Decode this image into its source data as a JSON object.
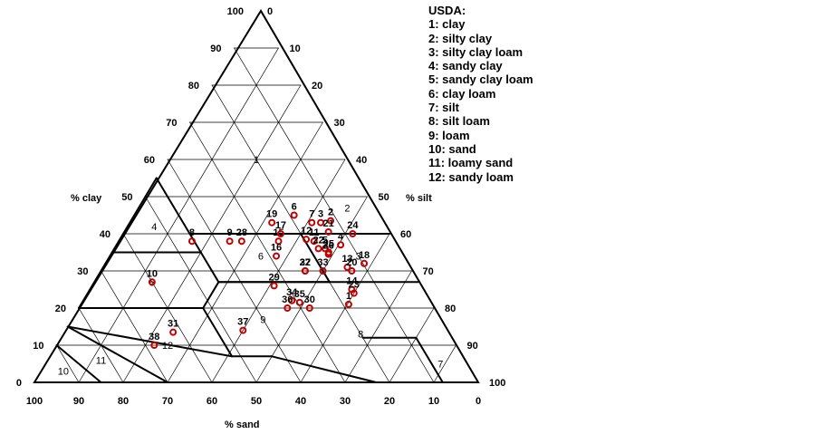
{
  "chart_data": {
    "type": "ternary-scatter",
    "title": "",
    "axes": {
      "clay": {
        "label": "% clay",
        "ticks": [
          "0",
          "10",
          "20",
          "30",
          "40",
          "50",
          "60",
          "70",
          "80",
          "90",
          "100"
        ]
      },
      "silt": {
        "label": "% silt",
        "ticks": [
          "0",
          "10",
          "20",
          "30",
          "40",
          "50",
          "60",
          "70",
          "80",
          "90",
          "100"
        ]
      },
      "sand": {
        "label": "% sand",
        "ticks": [
          "100",
          "90",
          "80",
          "70",
          "60",
          "50",
          "40",
          "30",
          "20",
          "10",
          "0"
        ]
      }
    },
    "grid": true,
    "legend": {
      "position": "top-right",
      "title": "USDA:",
      "entries": [
        "1: clay",
        "2: silty clay",
        "3: silty clay loam",
        "4: sandy clay",
        "5: sandy clay loam",
        "6: clay loam",
        "7: silt",
        "8: silt loam",
        "9: loam",
        "10: sand",
        "11: loamy sand",
        "12: sandy loam"
      ]
    },
    "region_labels": [
      {
        "text": "1",
        "sand": 20,
        "clay": 60
      },
      {
        "text": "2",
        "sand": 6,
        "clay": 47
      },
      {
        "text": "3",
        "sand": 10,
        "clay": 34
      },
      {
        "text": "4",
        "sand": 52,
        "clay": 42
      },
      {
        "text": "5",
        "sand": 60,
        "clay": 27
      },
      {
        "text": "6",
        "sand": 32,
        "clay": 34
      },
      {
        "text": "7",
        "sand": 6,
        "clay": 5
      },
      {
        "text": "8",
        "sand": 20,
        "clay": 13
      },
      {
        "text": "9",
        "sand": 40,
        "clay": 17
      },
      {
        "text": "10",
        "sand": 92,
        "clay": 3
      },
      {
        "text": "11",
        "sand": 82,
        "clay": 6
      },
      {
        "text": "12",
        "sand": 65,
        "clay": 10
      }
    ],
    "points": [
      {
        "label": "1",
        "sand": 18.7,
        "clay": 21.0
      },
      {
        "label": "2",
        "sand": 11.5,
        "clay": 43.5
      },
      {
        "label": "3",
        "sand": 14.0,
        "clay": 43.0
      },
      {
        "label": "4",
        "sand": 12.5,
        "clay": 37.0
      },
      {
        "label": "5",
        "sand": 16.5,
        "clay": 36.0
      },
      {
        "label": "6",
        "sand": 19.0,
        "clay": 45.0
      },
      {
        "label": "7",
        "sand": 16.0,
        "clay": 43.0
      },
      {
        "label": "8",
        "sand": 45.5,
        "clay": 38.0
      },
      {
        "label": "9",
        "sand": 37.0,
        "clay": 38.0
      },
      {
        "label": "10",
        "sand": 60.0,
        "clay": 27.0
      },
      {
        "label": "11",
        "sand": 18.0,
        "clay": 38.0
      },
      {
        "label": "12",
        "sand": 19.5,
        "clay": 38.5
      },
      {
        "label": "13",
        "sand": 14.0,
        "clay": 31.0
      },
      {
        "label": "14",
        "sand": 16.0,
        "clay": 25.0
      },
      {
        "label": "15",
        "sand": 26.0,
        "clay": 38.0
      },
      {
        "label": "16",
        "sand": 28.5,
        "clay": 34.0
      },
      {
        "label": "17",
        "sand": 24.5,
        "clay": 40.0
      },
      {
        "label": "18",
        "sand": 9.7,
        "clay": 32.0
      },
      {
        "label": "19",
        "sand": 25.0,
        "clay": 43.0
      },
      {
        "label": "20",
        "sand": 13.5,
        "clay": 30.0
      },
      {
        "label": "21",
        "sand": 13.5,
        "clay": 40.5
      },
      {
        "label": "22",
        "sand": 18.0,
        "clay": 36.0
      },
      {
        "label": "23",
        "sand": 16.0,
        "clay": 24.0
      },
      {
        "label": "24",
        "sand": 8.3,
        "clay": 40.0
      },
      {
        "label": "25",
        "sand": 16.2,
        "clay": 35.0
      },
      {
        "label": "26",
        "sand": 16.5,
        "clay": 34.5
      },
      {
        "label": "27",
        "sand": 24.0,
        "clay": 30.0
      },
      {
        "label": "28",
        "sand": 34.3,
        "clay": 38.0
      },
      {
        "label": "29",
        "sand": 33.0,
        "clay": 26.0
      },
      {
        "label": "30",
        "sand": 28.0,
        "clay": 20.0
      },
      {
        "label": "31",
        "sand": 62.0,
        "clay": 13.5
      },
      {
        "label": "32",
        "sand": 24.0,
        "clay": 30.0
      },
      {
        "label": "33",
        "sand": 20.0,
        "clay": 30.0
      },
      {
        "label": "34",
        "sand": 31.0,
        "clay": 22.0
      },
      {
        "label": "35",
        "sand": 29.5,
        "clay": 21.5
      },
      {
        "label": "36",
        "sand": 33.0,
        "clay": 20.0
      },
      {
        "label": "37",
        "sand": 46.0,
        "clay": 14.0
      },
      {
        "label": "38",
        "sand": 68.0,
        "clay": 10.0
      }
    ]
  }
}
